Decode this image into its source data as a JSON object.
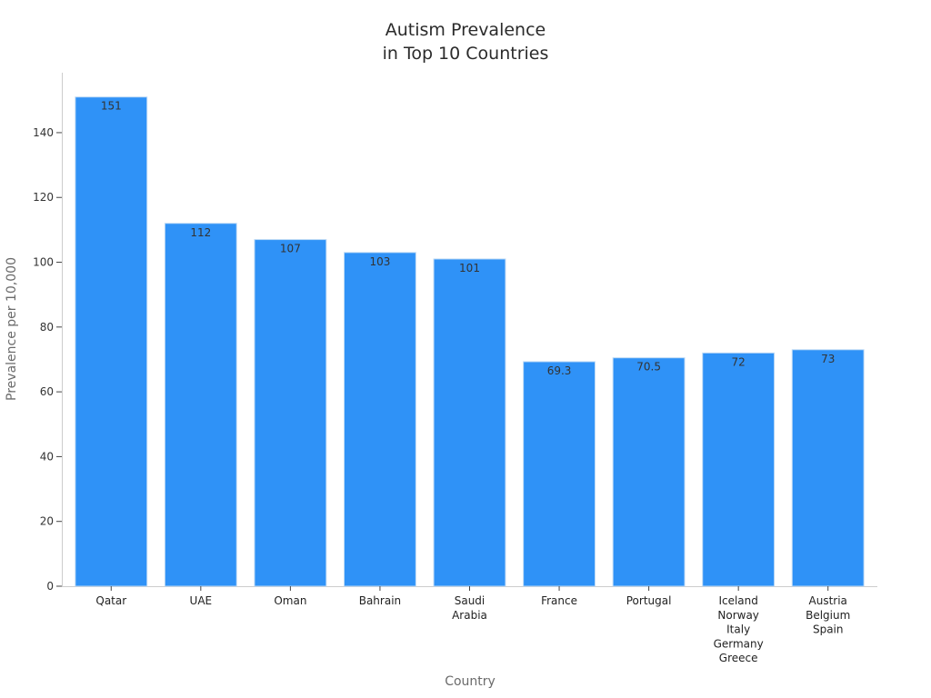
{
  "chart_data": {
    "type": "bar",
    "title_lines": [
      "Autism Prevalence",
      "in Top 10 Countries"
    ],
    "xlabel": "Country",
    "ylabel": "Prevalence per 10,000",
    "categories": [
      [
        "Qatar"
      ],
      [
        "UAE"
      ],
      [
        "Oman"
      ],
      [
        "Bahrain"
      ],
      [
        "Saudi",
        "Arabia"
      ],
      [
        "France"
      ],
      [
        "Portugal"
      ],
      [
        "Iceland",
        "Norway",
        "Italy",
        "Germany",
        "Greece"
      ],
      [
        "Austria",
        "Belgium",
        "Spain"
      ]
    ],
    "values": [
      151,
      112,
      107,
      103,
      101,
      69.3,
      70.5,
      72,
      73
    ],
    "value_labels": [
      "151",
      "112",
      "107",
      "103",
      "101",
      "69.3",
      "70.5",
      "72",
      "73"
    ],
    "yticks": [
      0,
      20,
      40,
      60,
      80,
      100,
      120,
      140
    ],
    "ylim": [
      0,
      158.5
    ],
    "grid": false,
    "bar_color": "#2f92f7",
    "bar_edge_color": "#bcd9f5"
  }
}
